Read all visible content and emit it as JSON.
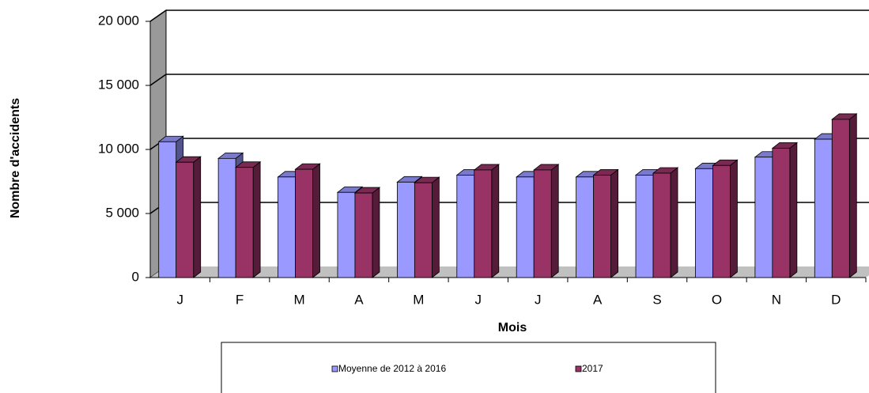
{
  "chart_data": {
    "type": "bar3d",
    "x_label": "Mois",
    "y_label": "Nombre d'accidents",
    "categories": [
      "J",
      "F",
      "M",
      "A",
      "M",
      "J",
      "J",
      "A",
      "S",
      "O",
      "N",
      "D"
    ],
    "series": [
      {
        "name": "Moyenne de 2012 à 2016",
        "color": "#9999ff",
        "values": [
          10600,
          9300,
          7850,
          6650,
          7450,
          8000,
          7850,
          7850,
          8000,
          8500,
          9400,
          10800
        ]
      },
      {
        "name": "2017",
        "color": "#993366",
        "values": [
          9000,
          8600,
          8450,
          6600,
          7400,
          8400,
          8400,
          8000,
          8150,
          8750,
          10100,
          12350
        ]
      }
    ],
    "ylim": [
      0,
      20000
    ],
    "yticks": [
      0,
      {
        "value": 5000,
        "label": "5 000"
      },
      {
        "value": 10000,
        "label": "10 000"
      },
      {
        "value": 15000,
        "label": "15 000"
      },
      {
        "value": 20000,
        "label": "20 000"
      }
    ],
    "grid": true,
    "legend": "bottom"
  }
}
